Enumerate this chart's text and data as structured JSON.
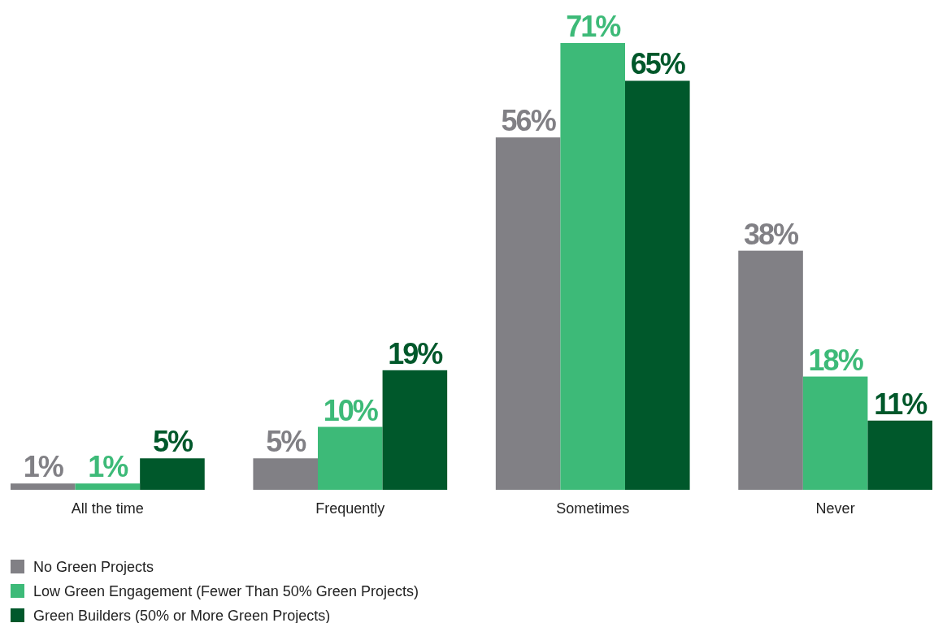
{
  "chart_data": {
    "type": "bar",
    "categories": [
      "All the time",
      "Frequently",
      "Sometimes",
      "Never"
    ],
    "series": [
      {
        "name": "No Green Projects",
        "color": "#818085",
        "values": [
          1,
          5,
          56,
          38
        ],
        "value_labels": [
          "1%",
          "5%",
          "56%",
          "38%"
        ]
      },
      {
        "name": "Low Green Engagement (Fewer Than 50% Green Projects)",
        "color": "#3dba78",
        "values": [
          1,
          10,
          71,
          18
        ],
        "value_labels": [
          "1%",
          "10%",
          "71%",
          "18%"
        ]
      },
      {
        "name": "Green Builders (50% or More Green Projects)",
        "color": "#00582b",
        "values": [
          5,
          19,
          65,
          11
        ],
        "value_labels": [
          "5%",
          "19%",
          "65%",
          "11%"
        ]
      }
    ],
    "legend": "bottom left"
  }
}
